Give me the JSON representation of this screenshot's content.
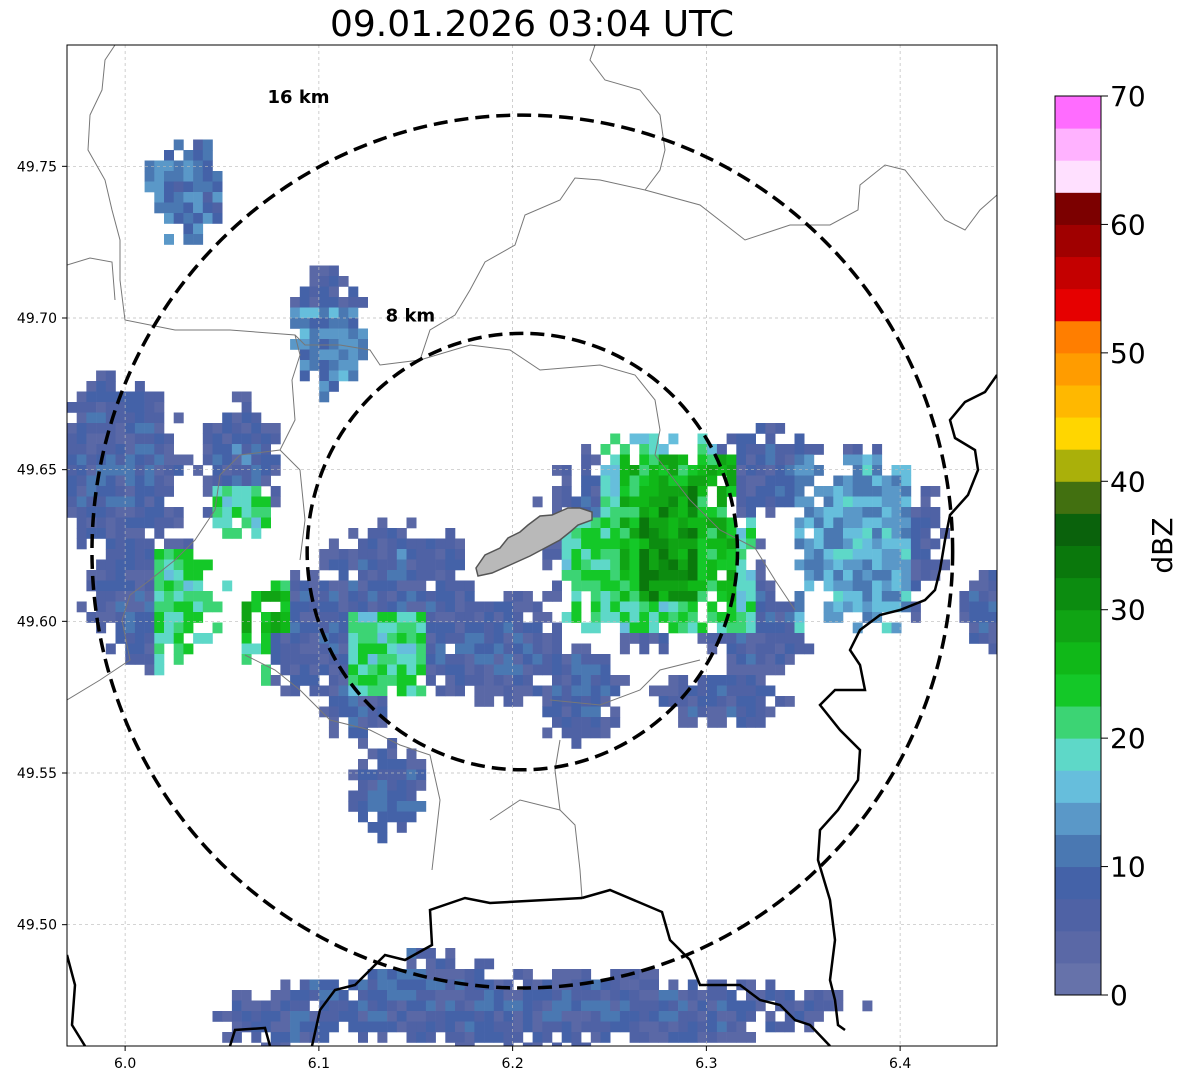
{
  "title": "09.01.2026 03:04 UTC",
  "map": {
    "lon_range": [
      5.97,
      6.45
    ],
    "lat_range": [
      49.46,
      49.79
    ],
    "center": {
      "lon": 6.205,
      "lat": 49.623
    },
    "rings": [
      {
        "label": "8 km",
        "radius_km": 8
      },
      {
        "label": "16 km",
        "radius_km": 16
      }
    ],
    "x_ticks": [
      {
        "value": 6.0,
        "label": "6.0"
      },
      {
        "value": 6.1,
        "label": "6.1"
      },
      {
        "value": 6.2,
        "label": "6.2"
      },
      {
        "value": 6.3,
        "label": "6.3"
      },
      {
        "value": 6.4,
        "label": "6.4"
      }
    ],
    "y_ticks": [
      {
        "value": 49.5,
        "label": "49.50"
      },
      {
        "value": 49.55,
        "label": "49.55"
      },
      {
        "value": 49.6,
        "label": "49.60"
      },
      {
        "value": 49.65,
        "label": "49.65"
      },
      {
        "value": 49.7,
        "label": "49.70"
      },
      {
        "value": 49.75,
        "label": "49.75"
      }
    ],
    "grid": true
  },
  "colorbar": {
    "label": "dBZ",
    "min": 0,
    "max": 70,
    "step": 2.5,
    "ticks": [
      {
        "value": 0,
        "label": "0"
      },
      {
        "value": 10,
        "label": "10"
      },
      {
        "value": 20,
        "label": "20"
      },
      {
        "value": 30,
        "label": "30"
      },
      {
        "value": 40,
        "label": "40"
      },
      {
        "value": 50,
        "label": "50"
      },
      {
        "value": 60,
        "label": "60"
      },
      {
        "value": 70,
        "label": "70"
      }
    ],
    "colors": [
      "#6672aa",
      "#5a68a6",
      "#4f62a5",
      "#4462a8",
      "#4a78b2",
      "#5a98c8",
      "#66bedc",
      "#5ed8c8",
      "#3cd474",
      "#14c828",
      "#10b818",
      "#10a414",
      "#0c8c10",
      "#0a780c",
      "#0a620c",
      "#427010",
      "#aab00a",
      "#ffd600",
      "#ffb800",
      "#ff9c00",
      "#ff7e00",
      "#e60000",
      "#c40000",
      "#a00000",
      "#7c0000",
      "#ffe0ff",
      "#ffb2ff",
      "#ff6cff",
      "#ea36ea"
    ]
  },
  "chart_data": {
    "type": "heatmap",
    "title": "09.01.2026 03:04 UTC",
    "xlabel": "",
    "ylabel": "",
    "colorbar_label": "dBZ",
    "xlim": [
      5.97,
      6.45
    ],
    "ylim": [
      49.46,
      49.79
    ],
    "zlim": [
      0,
      70
    ],
    "cells": [
      {
        "x0": 6.02,
        "x1": 6.07,
        "y0": 49.58,
        "y1": 49.62,
        "v": 21
      },
      {
        "x0": 6.06,
        "x1": 6.08,
        "y0": 49.6,
        "y1": 49.62,
        "v": 26
      },
      {
        "x0": 6.05,
        "x1": 6.07,
        "y0": 49.62,
        "y1": 49.64,
        "v": 20
      },
      {
        "x0": 6.12,
        "x1": 6.15,
        "y0": 49.58,
        "y1": 49.6,
        "v": 21
      },
      {
        "x0": 6.23,
        "x1": 6.32,
        "y0": 49.6,
        "y1": 49.63,
        "v": 21
      },
      {
        "x0": 6.26,
        "x1": 6.31,
        "y0": 49.61,
        "y1": 49.65,
        "v": 25
      },
      {
        "x0": 6.27,
        "x1": 6.29,
        "y0": 49.61,
        "y1": 49.64,
        "v": 30
      },
      {
        "x0": 6.25,
        "x1": 6.3,
        "y0": 49.63,
        "y1": 49.66,
        "v": 19
      },
      {
        "x0": 6.35,
        "x1": 6.4,
        "y0": 49.6,
        "y1": 49.65,
        "v": 14
      },
      {
        "x0": 6.09,
        "x1": 6.12,
        "y0": 49.66,
        "y1": 49.7,
        "v": 12
      },
      {
        "x0": 6.01,
        "x1": 6.05,
        "y0": 49.72,
        "y1": 49.76,
        "v": 11
      },
      {
        "x0": 6.1,
        "x1": 6.15,
        "y0": 49.48,
        "y1": 49.54,
        "v": 8
      }
    ]
  }
}
